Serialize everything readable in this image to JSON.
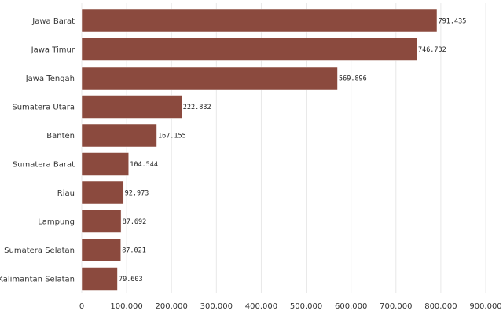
{
  "chart_data": {
    "type": "bar",
    "orientation": "horizontal",
    "title": "",
    "xlabel": "",
    "ylabel": "",
    "categories": [
      "Jawa Barat",
      "Jawa Timur",
      "Jawa Tengah",
      "Sumatera Utara",
      "Banten",
      "Sumatera Barat",
      "Riau",
      "Lampung",
      "Sumatera Selatan",
      "Kalimantan Selatan"
    ],
    "values": [
      791435,
      746732,
      569896,
      222832,
      167155,
      104544,
      92973,
      87692,
      87021,
      79603
    ],
    "value_labels": [
      "791.435",
      "746.732",
      "569.896",
      "222.832",
      "167.155",
      "104.544",
      "92.973",
      "87.692",
      "87.021",
      "79.603"
    ],
    "xlim": [
      0,
      900000
    ],
    "x_ticks": [
      0,
      100000,
      200000,
      300000,
      400000,
      500000,
      600000,
      700000,
      800000,
      900000
    ],
    "x_tick_labels": [
      "0",
      "100.000",
      "200.000",
      "300.000",
      "400.000",
      "500.000",
      "600.000",
      "700.000",
      "800.000",
      "900.000"
    ],
    "grid": true,
    "legend": "none",
    "colors": {
      "bar": "#8b4a3e"
    }
  }
}
